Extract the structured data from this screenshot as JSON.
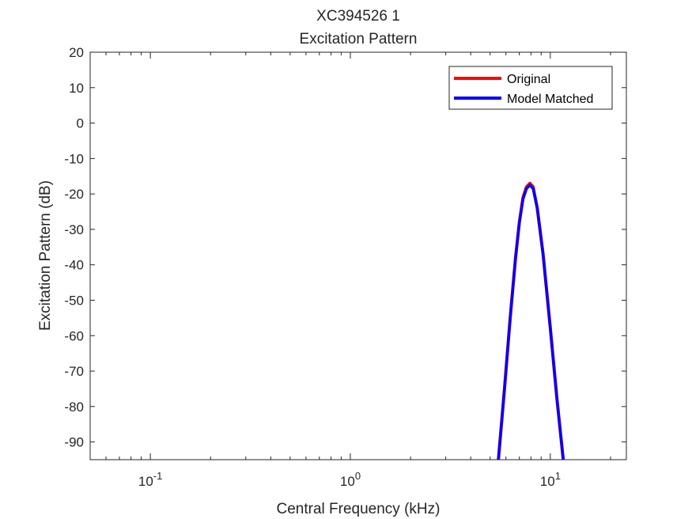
{
  "chart_data": {
    "type": "line",
    "title": "XC394526 1",
    "subtitle": "Excitation Pattern",
    "xlabel": "Central Frequency (kHz)",
    "ylabel": "Excitation Pattern (dB)",
    "xscale": "log",
    "xlim": [
      0.05,
      24
    ],
    "ylim": [
      -95,
      20
    ],
    "yticks": [
      20,
      10,
      0,
      -10,
      -20,
      -30,
      -40,
      -50,
      -60,
      -70,
      -80,
      -90
    ],
    "ytick_labels": [
      "20",
      "10",
      "0",
      "-10",
      "-20",
      "-30",
      "-40",
      "-50",
      "-60",
      "-70",
      "-80",
      "-90"
    ],
    "xticks": [
      {
        "value": 0.1,
        "base": "10",
        "exp": "-1"
      },
      {
        "value": 1,
        "base": "10",
        "exp": "0"
      },
      {
        "value": 10,
        "base": "10",
        "exp": "1"
      }
    ],
    "grid": false,
    "legend_position": "top-right",
    "series": [
      {
        "name": "Original",
        "color": "#ff0000",
        "x": [
          5.5,
          5.9,
          6.3,
          6.7,
          7.0,
          7.3,
          7.6,
          7.9,
          8.2,
          8.6,
          9.2,
          10.0,
          10.8,
          11.6
        ],
        "y": [
          -95,
          -75,
          -55,
          -38,
          -28,
          -21,
          -18,
          -17,
          -18,
          -24,
          -37,
          -58,
          -78,
          -95
        ]
      },
      {
        "name": "Model Matched",
        "color": "#0000ff",
        "x": [
          5.5,
          5.9,
          6.3,
          6.7,
          7.0,
          7.3,
          7.6,
          7.9,
          8.2,
          8.6,
          9.2,
          10.0,
          10.8,
          11.6
        ],
        "y": [
          -95,
          -75,
          -55,
          -38,
          -28,
          -21.5,
          -18.5,
          -17.5,
          -18.5,
          -24,
          -37,
          -58,
          -78,
          -95
        ]
      }
    ]
  }
}
